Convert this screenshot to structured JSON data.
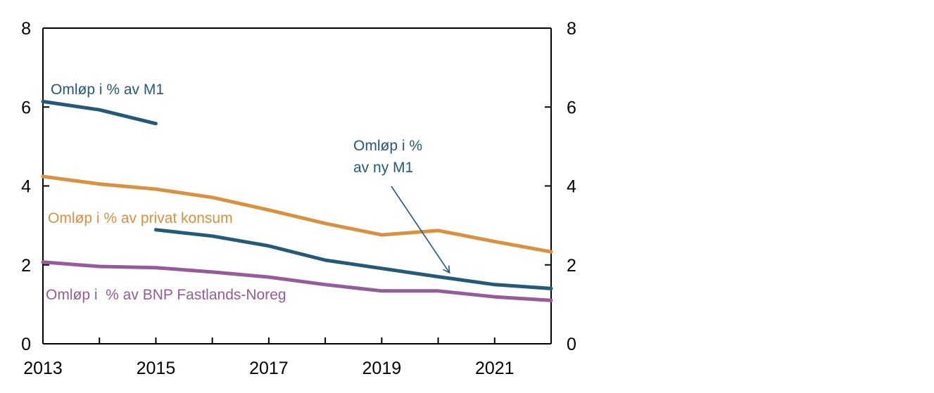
{
  "chart_data": {
    "type": "line",
    "title": "",
    "xlabel": "",
    "ylabel": "",
    "xlim": [
      2013,
      2022
    ],
    "ylim": [
      0,
      8
    ],
    "y_ticks": [
      0,
      2,
      4,
      6,
      8
    ],
    "y_ticks_right": [
      0,
      2,
      4,
      6,
      8
    ],
    "x_tick_labels": [
      "2013",
      "2015",
      "2017",
      "2019",
      "2021"
    ],
    "x_tick_positions": [
      2013,
      2015,
      2017,
      2019,
      2021
    ],
    "x_minor_ticks": [
      2014,
      2015,
      2016,
      2017,
      2018,
      2019,
      2020,
      2021
    ],
    "grid": false,
    "legend": "none (inline annotations)",
    "series": [
      {
        "name": "Omløp i % av M1",
        "color": "#245a78",
        "x": [
          2013,
          2014,
          2015
        ],
        "values": [
          6.14,
          5.93,
          5.58
        ]
      },
      {
        "name": "Omløp i % av ny M1",
        "color": "#245a78",
        "x": [
          2015,
          2016,
          2017,
          2018,
          2019,
          2020,
          2021,
          2022
        ],
        "values": [
          2.89,
          2.73,
          2.48,
          2.12,
          1.91,
          1.7,
          1.5,
          1.4
        ]
      },
      {
        "name": "Omløp i % av privat konsum",
        "color": "#d9913f",
        "x": [
          2013,
          2014,
          2015,
          2016,
          2017,
          2018,
          2019,
          2020,
          2021,
          2022
        ],
        "values": [
          4.24,
          4.05,
          3.92,
          3.71,
          3.39,
          3.05,
          2.76,
          2.87,
          2.59,
          2.33
        ]
      },
      {
        "name": "Omløp i  % av BNP Fastlands-Noreg",
        "color": "#955b9a",
        "x": [
          2013,
          2014,
          2015,
          2016,
          2017,
          2018,
          2019,
          2020,
          2021,
          2022
        ],
        "values": [
          2.07,
          1.96,
          1.93,
          1.82,
          1.69,
          1.5,
          1.34,
          1.34,
          1.19,
          1.1
        ]
      }
    ],
    "annotations": [
      {
        "id": "m1",
        "text": "Omløp i % av M1",
        "color": "#245a78"
      },
      {
        "id": "ny-m1",
        "lines": [
          "Omløp i %",
          "av ny M1"
        ],
        "color": "#245a78",
        "arrow_to": {
          "x": 2020.2,
          "y": 1.8
        }
      },
      {
        "id": "konsum",
        "text": "Omløp i % av privat konsum",
        "color": "#d9913f"
      },
      {
        "id": "bnp",
        "text": "Omløp i  % av BNP Fastlands-Noreg",
        "color": "#955b9a"
      }
    ]
  }
}
